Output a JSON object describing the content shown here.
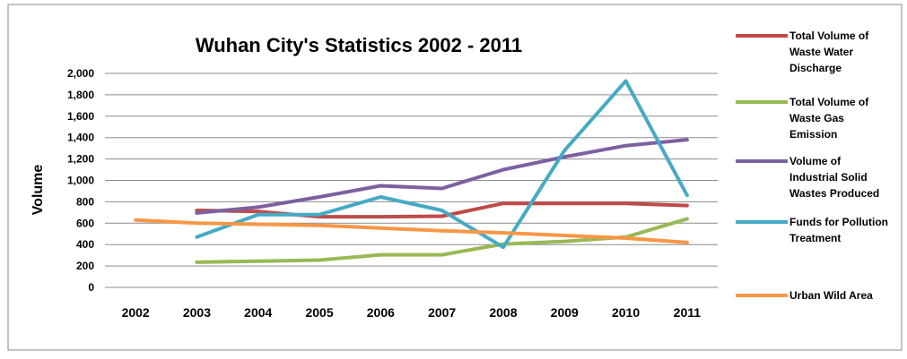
{
  "chart_data": {
    "type": "line",
    "title": "Wuhan City's Statistics 2002 - 2011",
    "ylabel": "Volume",
    "xlabel": "",
    "ylim": [
      0,
      2000
    ],
    "ytick_step": 200,
    "ytick_labels": [
      "0",
      "200",
      "400",
      "600",
      "800",
      "1,000",
      "1,200",
      "1,400",
      "1,600",
      "1,800",
      "2,000"
    ],
    "categories": [
      "2002",
      "2003",
      "2004",
      "2005",
      "2006",
      "2007",
      "2008",
      "2009",
      "2010",
      "2011"
    ],
    "grid": true,
    "legend_position": "right",
    "series": [
      {
        "name": "Total Volume of Waste Water Discharge",
        "legend_lines": [
          "Total Volume of",
          "Waste Water",
          "Discharge"
        ],
        "color": "#BE4B48",
        "values": [
          null,
          720,
          710,
          660,
          660,
          665,
          785,
          785,
          785,
          765
        ]
      },
      {
        "name": "Total Volume of Waste Gas Emission",
        "legend_lines": [
          "Total Volume of",
          "Waste Gas",
          "Emission"
        ],
        "color": "#98B954",
        "values": [
          null,
          235,
          245,
          255,
          305,
          305,
          405,
          430,
          470,
          640
        ]
      },
      {
        "name": "Volume of Industrial Solid Wastes Produced",
        "legend_lines": [
          "Volume of",
          "Industrial Solid",
          "Wastes Produced"
        ],
        "color": "#7D60A0",
        "values": [
          null,
          695,
          750,
          845,
          950,
          925,
          1100,
          1220,
          1325,
          1380
        ]
      },
      {
        "name": "Funds for Pollution Treatment",
        "legend_lines": [
          "Funds for Pollution",
          "Treatment"
        ],
        "color": "#46AAC5",
        "values": [
          null,
          470,
          680,
          680,
          845,
          720,
          375,
          1280,
          1930,
          860
        ]
      },
      {
        "name": "Urban Wild Area",
        "legend_lines": [
          "Urban Wild Area"
        ],
        "color": "#F79646",
        "values": [
          630,
          600,
          590,
          580,
          555,
          530,
          510,
          485,
          460,
          420
        ]
      }
    ]
  }
}
